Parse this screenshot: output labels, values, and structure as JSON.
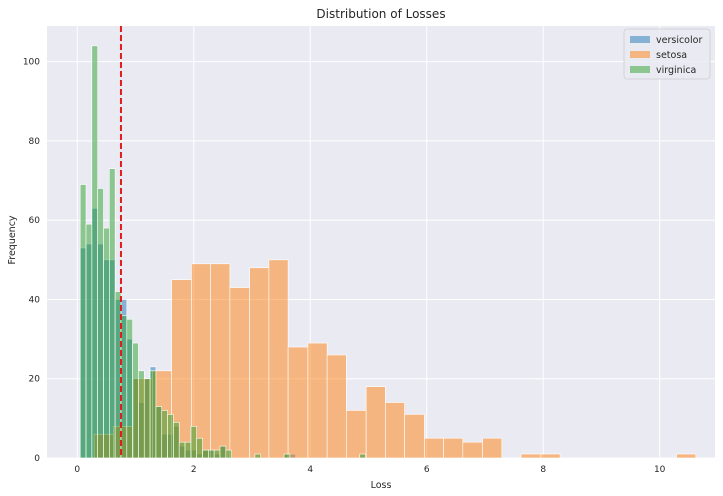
{
  "chart_data": {
    "type": "bar",
    "title": "Distribution of Losses",
    "xlabel": "Loss",
    "ylabel": "Frequency",
    "xlim": [
      -0.52,
      10.95
    ],
    "ylim": [
      0,
      109
    ],
    "xticks": [
      0,
      2,
      4,
      6,
      8,
      10
    ],
    "yticks": [
      0,
      20,
      40,
      60,
      80,
      100
    ],
    "grid": true,
    "legend_position": "top-right",
    "threshold_line": {
      "x": 0.75,
      "color": "#e41a1c",
      "style": "dashed"
    },
    "series": [
      {
        "name": "versicolor",
        "color": "#1f77b4",
        "bins": [
          {
            "x0": 0.05,
            "x1": 0.15,
            "y": 53
          },
          {
            "x0": 0.15,
            "x1": 0.25,
            "y": 54
          },
          {
            "x0": 0.25,
            "x1": 0.35,
            "y": 63
          },
          {
            "x0": 0.35,
            "x1": 0.45,
            "y": 54
          },
          {
            "x0": 0.45,
            "x1": 0.55,
            "y": 50
          },
          {
            "x0": 0.55,
            "x1": 0.65,
            "y": 50
          },
          {
            "x0": 0.65,
            "x1": 0.75,
            "y": 40
          },
          {
            "x0": 0.75,
            "x1": 0.85,
            "y": 40
          },
          {
            "x0": 0.85,
            "x1": 0.95,
            "y": 30
          },
          {
            "x0": 0.95,
            "x1": 1.05,
            "y": 20
          },
          {
            "x0": 1.05,
            "x1": 1.15,
            "y": 14
          },
          {
            "x0": 1.15,
            "x1": 1.25,
            "y": 20
          },
          {
            "x0": 1.25,
            "x1": 1.35,
            "y": 23
          },
          {
            "x0": 1.35,
            "x1": 1.45,
            "y": 13
          },
          {
            "x0": 1.45,
            "x1": 1.55,
            "y": 6
          },
          {
            "x0": 1.55,
            "x1": 1.65,
            "y": 6
          },
          {
            "x0": 1.65,
            "x1": 1.75,
            "y": 8
          },
          {
            "x0": 1.75,
            "x1": 1.85,
            "y": 3
          },
          {
            "x0": 1.85,
            "x1": 1.95,
            "y": 2
          },
          {
            "x0": 1.95,
            "x1": 2.05,
            "y": 2
          },
          {
            "x0": 2.05,
            "x1": 2.15,
            "y": 1
          },
          {
            "x0": 2.15,
            "x1": 2.25,
            "y": 2
          },
          {
            "x0": 2.25,
            "x1": 2.35,
            "y": 2
          },
          {
            "x0": 2.35,
            "x1": 2.45,
            "y": 1
          },
          {
            "x0": 2.45,
            "x1": 2.55,
            "y": 3
          },
          {
            "x0": 3.55,
            "x1": 3.65,
            "y": 1
          },
          {
            "x0": 3.65,
            "x1": 3.75,
            "y": 1
          }
        ]
      },
      {
        "name": "setosa",
        "color": "#ff7f0e",
        "bins": [
          {
            "x0": 0.29,
            "x1": 0.62,
            "y": 6
          },
          {
            "x0": 0.62,
            "x1": 0.96,
            "y": 8
          },
          {
            "x0": 0.96,
            "x1": 1.29,
            "y": 20
          },
          {
            "x0": 1.29,
            "x1": 1.62,
            "y": 22
          },
          {
            "x0": 1.62,
            "x1": 1.96,
            "y": 45
          },
          {
            "x0": 1.96,
            "x1": 2.29,
            "y": 49
          },
          {
            "x0": 2.29,
            "x1": 2.62,
            "y": 49
          },
          {
            "x0": 2.62,
            "x1": 2.96,
            "y": 43
          },
          {
            "x0": 2.96,
            "x1": 3.29,
            "y": 48
          },
          {
            "x0": 3.29,
            "x1": 3.62,
            "y": 50
          },
          {
            "x0": 3.62,
            "x1": 3.96,
            "y": 28
          },
          {
            "x0": 3.96,
            "x1": 4.29,
            "y": 29
          },
          {
            "x0": 4.29,
            "x1": 4.62,
            "y": 26
          },
          {
            "x0": 4.62,
            "x1": 4.96,
            "y": 12
          },
          {
            "x0": 4.96,
            "x1": 5.29,
            "y": 18
          },
          {
            "x0": 5.29,
            "x1": 5.62,
            "y": 14
          },
          {
            "x0": 5.62,
            "x1": 5.96,
            "y": 11
          },
          {
            "x0": 5.96,
            "x1": 6.29,
            "y": 5
          },
          {
            "x0": 6.29,
            "x1": 6.62,
            "y": 5
          },
          {
            "x0": 6.62,
            "x1": 6.96,
            "y": 4
          },
          {
            "x0": 6.96,
            "x1": 7.29,
            "y": 5
          },
          {
            "x0": 7.29,
            "x1": 7.62,
            "y": 0
          },
          {
            "x0": 7.62,
            "x1": 7.96,
            "y": 1
          },
          {
            "x0": 7.96,
            "x1": 8.29,
            "y": 1
          },
          {
            "x0": 10.29,
            "x1": 10.62,
            "y": 1
          }
        ]
      },
      {
        "name": "virginica",
        "color": "#2ca02c",
        "bins": [
          {
            "x0": 0.05,
            "x1": 0.15,
            "y": 69
          },
          {
            "x0": 0.15,
            "x1": 0.25,
            "y": 59
          },
          {
            "x0": 0.25,
            "x1": 0.35,
            "y": 104
          },
          {
            "x0": 0.35,
            "x1": 0.45,
            "y": 68
          },
          {
            "x0": 0.45,
            "x1": 0.55,
            "y": 58
          },
          {
            "x0": 0.55,
            "x1": 0.65,
            "y": 73
          },
          {
            "x0": 0.65,
            "x1": 0.75,
            "y": 42
          },
          {
            "x0": 0.75,
            "x1": 0.85,
            "y": 36
          },
          {
            "x0": 0.85,
            "x1": 0.95,
            "y": 35
          },
          {
            "x0": 0.95,
            "x1": 1.05,
            "y": 29
          },
          {
            "x0": 1.05,
            "x1": 1.15,
            "y": 22
          },
          {
            "x0": 1.15,
            "x1": 1.25,
            "y": 20
          },
          {
            "x0": 1.25,
            "x1": 1.35,
            "y": 22
          },
          {
            "x0": 1.35,
            "x1": 1.45,
            "y": 13
          },
          {
            "x0": 1.45,
            "x1": 1.55,
            "y": 12
          },
          {
            "x0": 1.55,
            "x1": 1.65,
            "y": 11
          },
          {
            "x0": 1.65,
            "x1": 1.75,
            "y": 9
          },
          {
            "x0": 1.75,
            "x1": 1.85,
            "y": 4
          },
          {
            "x0": 1.85,
            "x1": 1.95,
            "y": 4
          },
          {
            "x0": 1.95,
            "x1": 2.05,
            "y": 8
          },
          {
            "x0": 2.05,
            "x1": 2.15,
            "y": 5
          },
          {
            "x0": 2.15,
            "x1": 2.25,
            "y": 2
          },
          {
            "x0": 2.25,
            "x1": 2.35,
            "y": 2
          },
          {
            "x0": 2.35,
            "x1": 2.45,
            "y": 2
          },
          {
            "x0": 2.45,
            "x1": 2.55,
            "y": 3
          },
          {
            "x0": 2.55,
            "x1": 2.65,
            "y": 2
          },
          {
            "x0": 3.05,
            "x1": 3.15,
            "y": 1
          },
          {
            "x0": 3.55,
            "x1": 3.65,
            "y": 1
          },
          {
            "x0": 4.85,
            "x1": 4.95,
            "y": 1
          }
        ]
      }
    ]
  }
}
